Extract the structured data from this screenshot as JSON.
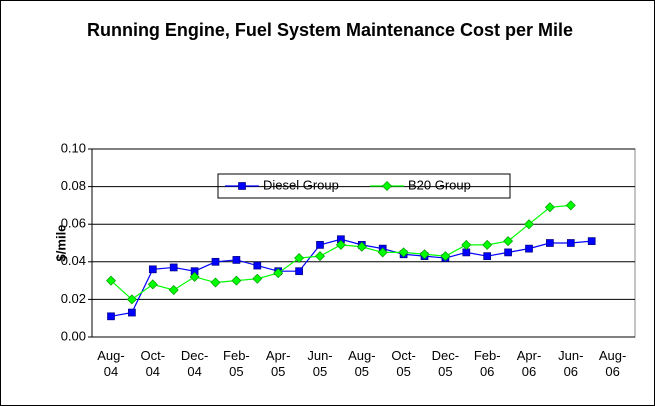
{
  "chart_data": {
    "type": "line",
    "title": "Running Engine, Fuel System Maintenance Cost per Mile",
    "y_label": "$/mile",
    "categories": [
      "Aug-04",
      null,
      "Oct-04",
      null,
      "Dec-04",
      null,
      "Feb-05",
      null,
      "Apr-05",
      null,
      "Jun-05",
      null,
      "Aug-05",
      null,
      "Oct-05",
      null,
      "Dec-05",
      null,
      "Feb-06",
      null,
      "Apr-06",
      null,
      "Jun-06",
      null,
      "Aug-06"
    ],
    "series": [
      {
        "name": "Diesel Group",
        "color": "#0000ff",
        "marker": "square",
        "values": [
          0.011,
          0.013,
          0.036,
          0.037,
          0.035,
          0.04,
          0.041,
          0.038,
          0.035,
          0.035,
          0.049,
          0.052,
          0.049,
          0.047,
          0.044,
          0.043,
          0.042,
          0.045,
          0.043,
          0.045,
          0.047,
          0.05,
          0.05,
          0.051,
          null
        ]
      },
      {
        "name": "B20 Group",
        "color": "#00ff00",
        "marker": "diamond",
        "values": [
          0.03,
          0.02,
          0.028,
          0.025,
          0.032,
          0.029,
          0.03,
          0.031,
          0.034,
          0.042,
          0.043,
          0.049,
          0.048,
          0.045,
          0.045,
          0.044,
          0.043,
          0.049,
          0.049,
          0.051,
          0.06,
          0.069,
          0.07,
          null,
          null
        ]
      }
    ],
    "ylim": [
      0,
      0.1
    ],
    "yticks": [
      {
        "value": 0,
        "label": "0.00"
      },
      {
        "value": 0.02,
        "label": "0.02"
      },
      {
        "value": 0.04,
        "label": "0.04"
      },
      {
        "value": 0.06,
        "label": "0.06"
      },
      {
        "value": 0.08,
        "label": "0.08"
      },
      {
        "value": 0.1,
        "label": "0.10"
      }
    ],
    "grid": true,
    "legend": "top"
  }
}
